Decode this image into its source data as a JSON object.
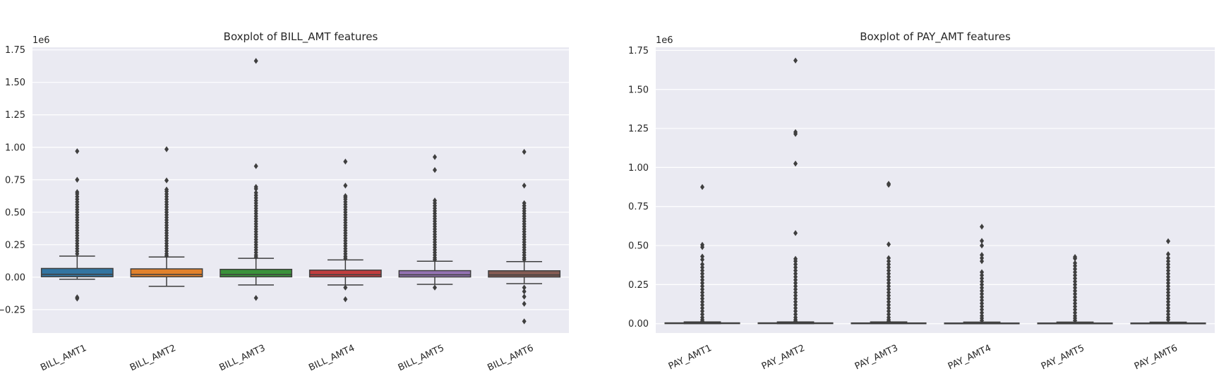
{
  "chart_data": [
    {
      "type": "box",
      "title": "Boxplot of BILL_AMT features",
      "xlabel": "",
      "ylabel": "",
      "offset_text": "1e6",
      "ylim": [
        -0.43,
        1.77
      ],
      "yticks": [
        -0.25,
        0.0,
        0.25,
        0.5,
        0.75,
        1.0,
        1.25,
        1.5,
        1.75
      ],
      "ytick_labels": [
        "−0.25",
        "0.00",
        "0.25",
        "0.50",
        "0.75",
        "1.00",
        "1.25",
        "1.50",
        "1.75"
      ],
      "grid": true,
      "categories": [
        "BILL_AMT1",
        "BILL_AMT2",
        "BILL_AMT3",
        "BILL_AMT4",
        "BILL_AMT5",
        "BILL_AMT6"
      ],
      "colors": [
        "#3274a1",
        "#e1812c",
        "#3a923a",
        "#c03d3e",
        "#9372b2",
        "#845b53"
      ],
      "boxes": [
        {
          "q1": 0.0035,
          "median": 0.0225,
          "q3": 0.0672,
          "whisker_low": -0.016,
          "whisker_high": 0.162,
          "outliers": [
            0.97,
            0.75,
            0.655,
            0.64,
            0.62,
            0.6,
            0.58,
            0.56,
            0.54,
            0.52,
            0.5,
            0.48,
            0.46,
            0.44,
            0.42,
            0.4,
            0.38,
            0.36,
            0.34,
            0.32,
            0.3,
            0.28,
            0.26,
            0.24,
            0.22,
            0.2,
            0.18,
            -0.155,
            -0.165
          ]
        },
        {
          "q1": 0.003,
          "median": 0.0212,
          "q3": 0.0641,
          "whisker_low": -0.07,
          "whisker_high": 0.155,
          "outliers": [
            0.985,
            0.745,
            0.675,
            0.66,
            0.64,
            0.62,
            0.6,
            0.58,
            0.56,
            0.54,
            0.52,
            0.5,
            0.48,
            0.46,
            0.44,
            0.42,
            0.4,
            0.38,
            0.36,
            0.34,
            0.32,
            0.3,
            0.28,
            0.26,
            0.24,
            0.22,
            0.2,
            0.18,
            0.165
          ]
        },
        {
          "q1": 0.0027,
          "median": 0.0201,
          "q3": 0.0602,
          "whisker_low": -0.06,
          "whisker_high": 0.145,
          "outliers": [
            1.665,
            0.855,
            0.695,
            0.68,
            0.65,
            0.63,
            0.61,
            0.59,
            0.57,
            0.55,
            0.53,
            0.51,
            0.49,
            0.47,
            0.45,
            0.43,
            0.41,
            0.39,
            0.37,
            0.35,
            0.33,
            0.31,
            0.29,
            0.27,
            0.25,
            0.23,
            0.21,
            0.19,
            0.17,
            0.155,
            -0.16
          ]
        },
        {
          "q1": 0.0023,
          "median": 0.019,
          "q3": 0.0542,
          "whisker_low": -0.06,
          "whisker_high": 0.133,
          "outliers": [
            0.89,
            0.705,
            0.625,
            0.615,
            0.6,
            0.58,
            0.56,
            0.54,
            0.52,
            0.5,
            0.48,
            0.46,
            0.44,
            0.42,
            0.4,
            0.38,
            0.36,
            0.34,
            0.32,
            0.3,
            0.28,
            0.26,
            0.24,
            0.22,
            0.2,
            0.18,
            0.16,
            0.145,
            -0.08,
            -0.17
          ]
        },
        {
          "q1": 0.0018,
          "median": 0.018,
          "q3": 0.0502,
          "whisker_low": -0.055,
          "whisker_high": 0.123,
          "outliers": [
            0.925,
            0.825,
            0.59,
            0.57,
            0.55,
            0.53,
            0.51,
            0.49,
            0.47,
            0.45,
            0.43,
            0.41,
            0.39,
            0.37,
            0.35,
            0.33,
            0.31,
            0.29,
            0.27,
            0.25,
            0.23,
            0.21,
            0.19,
            0.17,
            0.15,
            0.135,
            -0.08
          ]
        },
        {
          "q1": 0.0013,
          "median": 0.0171,
          "q3": 0.0492,
          "whisker_low": -0.05,
          "whisker_high": 0.12,
          "outliers": [
            0.965,
            0.705,
            0.57,
            0.55,
            0.53,
            0.51,
            0.49,
            0.47,
            0.45,
            0.43,
            0.41,
            0.39,
            0.37,
            0.35,
            0.33,
            0.31,
            0.29,
            0.27,
            0.25,
            0.23,
            0.21,
            0.19,
            0.17,
            0.15,
            0.135,
            -0.08,
            -0.11,
            -0.15,
            -0.205,
            -0.34
          ]
        }
      ]
    },
    {
      "type": "box",
      "title": "Boxplot of PAY_AMT features",
      "xlabel": "",
      "ylabel": "",
      "offset_text": "1e6",
      "ylim": [
        -0.06,
        1.77
      ],
      "yticks": [
        0.0,
        0.25,
        0.5,
        0.75,
        1.0,
        1.25,
        1.5,
        1.75
      ],
      "ytick_labels": [
        "0.00",
        "0.25",
        "0.50",
        "0.75",
        "1.00",
        "1.25",
        "1.50",
        "1.75"
      ],
      "grid": true,
      "categories": [
        "PAY_AMT1",
        "PAY_AMT2",
        "PAY_AMT3",
        "PAY_AMT4",
        "PAY_AMT5",
        "PAY_AMT6"
      ],
      "colors": [
        "#3274a1",
        "#e1812c",
        "#3a923a",
        "#c03d3e",
        "#9372b2",
        "#845b53"
      ],
      "boxes": [
        {
          "q1": 0.001,
          "median": 0.0021,
          "q3": 0.005,
          "whisker_low": 0.0,
          "whisker_high": 0.011,
          "outliers": [
            0.875,
            0.505,
            0.49,
            0.43,
            0.41,
            0.38,
            0.36,
            0.34,
            0.32,
            0.3,
            0.28,
            0.26,
            0.24,
            0.22,
            0.2,
            0.18,
            0.16,
            0.14,
            0.12,
            0.1,
            0.08,
            0.06,
            0.04,
            0.025,
            0.015
          ]
        },
        {
          "q1": 0.0008,
          "median": 0.002,
          "q3": 0.005,
          "whisker_low": 0.0,
          "whisker_high": 0.011,
          "outliers": [
            1.685,
            1.227,
            1.215,
            1.025,
            0.58,
            0.415,
            0.4,
            0.38,
            0.36,
            0.34,
            0.32,
            0.3,
            0.28,
            0.26,
            0.24,
            0.22,
            0.2,
            0.18,
            0.16,
            0.14,
            0.12,
            0.1,
            0.08,
            0.06,
            0.04,
            0.025,
            0.015
          ]
        },
        {
          "q1": 0.0004,
          "median": 0.0018,
          "q3": 0.0045,
          "whisker_low": 0.0,
          "whisker_high": 0.011,
          "outliers": [
            0.896,
            0.889,
            0.508,
            0.42,
            0.4,
            0.38,
            0.36,
            0.34,
            0.32,
            0.3,
            0.28,
            0.26,
            0.24,
            0.22,
            0.2,
            0.18,
            0.16,
            0.14,
            0.12,
            0.1,
            0.08,
            0.06,
            0.04,
            0.025,
            0.015
          ]
        },
        {
          "q1": 0.0003,
          "median": 0.0015,
          "q3": 0.004,
          "whisker_low": 0.0,
          "whisker_high": 0.01,
          "outliers": [
            0.621,
            0.53,
            0.5,
            0.44,
            0.42,
            0.4,
            0.33,
            0.31,
            0.29,
            0.27,
            0.25,
            0.23,
            0.21,
            0.19,
            0.17,
            0.15,
            0.13,
            0.11,
            0.09,
            0.07,
            0.05,
            0.035,
            0.02
          ]
        },
        {
          "q1": 0.0003,
          "median": 0.0015,
          "q3": 0.004,
          "whisker_low": 0.0,
          "whisker_high": 0.01,
          "outliers": [
            0.427,
            0.417,
            0.388,
            0.37,
            0.35,
            0.33,
            0.31,
            0.29,
            0.27,
            0.25,
            0.23,
            0.21,
            0.19,
            0.17,
            0.15,
            0.13,
            0.11,
            0.09,
            0.07,
            0.05,
            0.035,
            0.02
          ]
        },
        {
          "q1": 0.0001,
          "median": 0.0015,
          "q3": 0.004,
          "whisker_low": 0.0,
          "whisker_high": 0.0095,
          "outliers": [
            0.528,
            0.445,
            0.42,
            0.4,
            0.38,
            0.36,
            0.34,
            0.32,
            0.3,
            0.28,
            0.26,
            0.24,
            0.22,
            0.2,
            0.18,
            0.16,
            0.14,
            0.12,
            0.1,
            0.08,
            0.06,
            0.04,
            0.025
          ]
        }
      ]
    }
  ]
}
